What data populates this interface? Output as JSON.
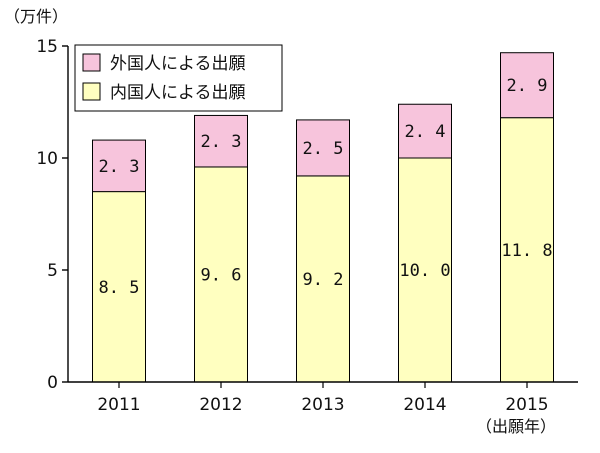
{
  "chart_data": {
    "type": "bar",
    "stacked": true,
    "y_unit_label": "（万件）",
    "x_unit_label": "（出願年）",
    "categories": [
      "2011",
      "2012",
      "2013",
      "2014",
      "2015"
    ],
    "yticks": [
      "0",
      "5",
      "10",
      "15"
    ],
    "ylim": [
      0,
      15
    ],
    "series": [
      {
        "name": "内国人による出願",
        "color": "#ffffc0",
        "values": [
          8.5,
          9.6,
          9.2,
          10.0,
          11.8
        ],
        "labels": [
          "8. 5",
          "9. 6",
          "9. 2",
          "10. 0",
          "11. 8"
        ]
      },
      {
        "name": "外国人による出願",
        "color": "#f7c4dc",
        "values": [
          2.3,
          2.3,
          2.5,
          2.4,
          2.9
        ],
        "labels": [
          "2. 3",
          "2. 3",
          "2. 5",
          "2. 4",
          "2. 9"
        ]
      }
    ],
    "legend": {
      "placement": "top-left",
      "order": [
        "外国人による出願",
        "内国人による出願"
      ]
    },
    "grid": false
  }
}
